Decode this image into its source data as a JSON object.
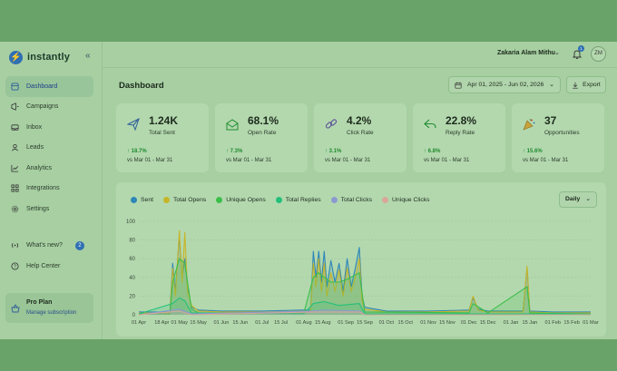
{
  "sidebar": {
    "brand": "instantly",
    "items": [
      {
        "label": "Dashboard",
        "icon": "dashboard-icon"
      },
      {
        "label": "Campaigns",
        "icon": "campaigns-icon"
      },
      {
        "label": "Inbox",
        "icon": "inbox-icon"
      },
      {
        "label": "Leads",
        "icon": "leads-icon"
      },
      {
        "label": "Analytics",
        "icon": "analytics-icon"
      },
      {
        "label": "Integrations",
        "icon": "integrations-icon"
      },
      {
        "label": "Settings",
        "icon": "settings-icon"
      }
    ],
    "secondary": [
      {
        "label": "What's new?",
        "badge": "2"
      },
      {
        "label": "Help Center"
      }
    ],
    "plan": {
      "title": "Pro Plan",
      "link": "Manage subscription"
    }
  },
  "header": {
    "user_name": "Zakaria Alam Mithu",
    "notifications": "1",
    "avatar_initials": "ZM"
  },
  "page": {
    "title": "Dashboard",
    "date_range": "Apr 01, 2025 - Jun 02, 2026",
    "export_label": "Export"
  },
  "metrics": [
    {
      "value": "1.24K",
      "label": "Total Sent",
      "delta": "↑ 18.7%",
      "compare": "vs Mar 01 - Mar 31",
      "icon": "send-icon"
    },
    {
      "value": "68.1%",
      "label": "Open Rate",
      "delta": "↑ 7.3%",
      "compare": "vs Mar 01 - Mar 31",
      "icon": "mail-open-icon"
    },
    {
      "value": "4.2%",
      "label": "Click Rate",
      "delta": "↑ 3.1%",
      "compare": "vs Mar 01 - Mar 31",
      "icon": "link-icon"
    },
    {
      "value": "22.8%",
      "label": "Reply Rate",
      "delta": "↑ 6.8%",
      "compare": "vs Mar 01 - Mar 31",
      "icon": "reply-icon"
    },
    {
      "value": "37",
      "label": "Opportunities",
      "delta": "↑ 15.6%",
      "compare": "vs Mar 01 - Mar 31",
      "icon": "party-icon"
    }
  ],
  "chart_controls": {
    "period": "Daily"
  },
  "colors": {
    "sent": "#2e86b8",
    "total_opens": "#c7b52a",
    "unique_opens": "#3bbf4a",
    "total_replies": "#25c07a",
    "total_clicks": "#8a9ad0",
    "unique_clicks": "#d8a79a"
  },
  "chart_data": {
    "type": "line",
    "ylim": [
      0,
      100
    ],
    "yticks": [
      "0",
      "20",
      "40",
      "60",
      "80",
      "100"
    ],
    "xticks": [
      "01 Apr",
      "18 Apr",
      "01 May",
      "15 May",
      "01 Jun",
      "15 Jun",
      "01 Jul",
      "15 Jul",
      "01 Aug",
      "15 Aug",
      "01 Sep",
      "15 Sep",
      "01 Oct",
      "15 Oct",
      "01 Nov",
      "15 Nov",
      "01 Dec",
      "15 Dec",
      "01 Jan",
      "15 Jan",
      "01 Feb",
      "15 Feb",
      "01 Mar"
    ],
    "series": [
      {
        "name": "Sent",
        "color": "#2e86b8",
        "points": [
          [
            "01 Apr",
            3
          ],
          [
            "18 Apr",
            3
          ],
          [
            "24 Apr",
            3
          ],
          [
            "26 Apr",
            55
          ],
          [
            "28 Apr",
            25
          ],
          [
            "01 May",
            85
          ],
          [
            "03 May",
            40
          ],
          [
            "05 May",
            60
          ],
          [
            "07 May",
            30
          ],
          [
            "10 May",
            8
          ],
          [
            "15 May",
            5
          ],
          [
            "01 Jun",
            4
          ],
          [
            "01 Jul",
            4
          ],
          [
            "01 Aug",
            5
          ],
          [
            "06 Aug",
            5
          ],
          [
            "08 Aug",
            68
          ],
          [
            "10 Aug",
            40
          ],
          [
            "12 Aug",
            68
          ],
          [
            "14 Aug",
            35
          ],
          [
            "16 Aug",
            68
          ],
          [
            "18 Aug",
            30
          ],
          [
            "21 Aug",
            58
          ],
          [
            "24 Aug",
            35
          ],
          [
            "27 Aug",
            55
          ],
          [
            "30 Aug",
            25
          ],
          [
            "02 Sep",
            60
          ],
          [
            "05 Sep",
            30
          ],
          [
            "08 Sep",
            50
          ],
          [
            "11 Sep",
            72
          ],
          [
            "13 Sep",
            20
          ],
          [
            "15 Sep",
            8
          ],
          [
            "01 Oct",
            4
          ],
          [
            "01 Nov",
            4
          ],
          [
            "01 Dec",
            5
          ],
          [
            "04 Dec",
            18
          ],
          [
            "08 Dec",
            6
          ],
          [
            "15 Dec",
            4
          ],
          [
            "01 Jan",
            4
          ],
          [
            "10 Jan",
            4
          ],
          [
            "13 Jan",
            50
          ],
          [
            "15 Jan",
            4
          ],
          [
            "01 Feb",
            3
          ],
          [
            "01 Mar",
            3
          ]
        ]
      },
      {
        "name": "Total Opens",
        "color": "#c7b52a",
        "points": [
          [
            "01 Apr",
            2
          ],
          [
            "18 Apr",
            2
          ],
          [
            "24 Apr",
            2
          ],
          [
            "26 Apr",
            50
          ],
          [
            "28 Apr",
            20
          ],
          [
            "01 May",
            90
          ],
          [
            "03 May",
            35
          ],
          [
            "05 May",
            88
          ],
          [
            "07 May",
            25
          ],
          [
            "10 May",
            10
          ],
          [
            "15 May",
            4
          ],
          [
            "01 Jun",
            3
          ],
          [
            "01 Jul",
            3
          ],
          [
            "01 Aug",
            4
          ],
          [
            "06 Aug",
            4
          ],
          [
            "08 Aug",
            55
          ],
          [
            "10 Aug",
            30
          ],
          [
            "12 Aug",
            60
          ],
          [
            "14 Aug",
            25
          ],
          [
            "16 Aug",
            55
          ],
          [
            "18 Aug",
            20
          ],
          [
            "21 Aug",
            45
          ],
          [
            "24 Aug",
            25
          ],
          [
            "27 Aug",
            48
          ],
          [
            "30 Aug",
            20
          ],
          [
            "02 Sep",
            50
          ],
          [
            "05 Sep",
            25
          ],
          [
            "08 Sep",
            40
          ],
          [
            "11 Sep",
            60
          ],
          [
            "13 Sep",
            15
          ],
          [
            "15 Sep",
            6
          ],
          [
            "01 Oct",
            3
          ],
          [
            "01 Nov",
            3
          ],
          [
            "01 Dec",
            4
          ],
          [
            "04 Dec",
            20
          ],
          [
            "08 Dec",
            5
          ],
          [
            "15 Dec",
            3
          ],
          [
            "01 Jan",
            3
          ],
          [
            "10 Jan",
            3
          ],
          [
            "13 Jan",
            52
          ],
          [
            "15 Jan",
            3
          ],
          [
            "01 Feb",
            2
          ],
          [
            "01 Mar",
            2
          ]
        ]
      },
      {
        "name": "Unique Opens",
        "color": "#3bbf4a",
        "points": [
          [
            "01 Apr",
            1
          ],
          [
            "24 Apr",
            1
          ],
          [
            "26 Apr",
            35
          ],
          [
            "01 May",
            60
          ],
          [
            "05 May",
            55
          ],
          [
            "10 May",
            6
          ],
          [
            "15 May",
            2
          ],
          [
            "01 Aug",
            2
          ],
          [
            "08 Aug",
            40
          ],
          [
            "12 Aug",
            45
          ],
          [
            "16 Aug",
            40
          ],
          [
            "21 Aug",
            35
          ],
          [
            "27 Aug",
            35
          ],
          [
            "02 Sep",
            38
          ],
          [
            "11 Sep",
            45
          ],
          [
            "15 Sep",
            3
          ],
          [
            "01 Dec",
            2
          ],
          [
            "04 Dec",
            12
          ],
          [
            "15 Dec",
            2
          ],
          [
            "13 Jan",
            30
          ],
          [
            "15 Jan",
            2
          ],
          [
            "01 Mar",
            1
          ]
        ]
      },
      {
        "name": "Total Replies",
        "color": "#25c07a",
        "points": [
          [
            "01 Apr",
            1
          ],
          [
            "26 Apr",
            12
          ],
          [
            "01 May",
            18
          ],
          [
            "05 May",
            15
          ],
          [
            "10 May",
            2
          ],
          [
            "01 Aug",
            1
          ],
          [
            "08 Aug",
            12
          ],
          [
            "16 Aug",
            14
          ],
          [
            "27 Aug",
            10
          ],
          [
            "11 Sep",
            12
          ],
          [
            "15 Sep",
            1
          ],
          [
            "01 Mar",
            1
          ]
        ]
      },
      {
        "name": "Total Clicks",
        "color": "#8a9ad0",
        "points": [
          [
            "01 Apr",
            0
          ],
          [
            "01 May",
            6
          ],
          [
            "10 May",
            1
          ],
          [
            "08 Aug",
            4
          ],
          [
            "16 Aug",
            5
          ],
          [
            "11 Sep",
            4
          ],
          [
            "15 Sep",
            0
          ],
          [
            "01 Mar",
            0
          ]
        ]
      },
      {
        "name": "Unique Clicks",
        "color": "#d8a79a",
        "points": [
          [
            "01 Apr",
            0
          ],
          [
            "01 May",
            4
          ],
          [
            "10 May",
            0
          ],
          [
            "08 Aug",
            3
          ],
          [
            "16 Aug",
            3
          ],
          [
            "11 Sep",
            3
          ],
          [
            "15 Sep",
            0
          ],
          [
            "01 Mar",
            0
          ]
        ]
      }
    ]
  }
}
